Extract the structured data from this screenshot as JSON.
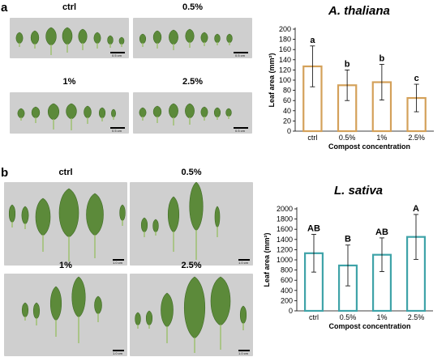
{
  "panels": {
    "a": {
      "letter": "a",
      "photos": [
        {
          "label": "ctrl",
          "scale": "0.5 cm"
        },
        {
          "label": "0.5%",
          "scale": "0.5 cm"
        },
        {
          "label": "1%",
          "scale": "0.5 cm"
        },
        {
          "label": "2.5%",
          "scale": "0.5 cm"
        }
      ]
    },
    "b": {
      "letter": "b",
      "photos": [
        {
          "label": "ctrl",
          "scale": "1.0 cm"
        },
        {
          "label": "0.5%",
          "scale": "1.0 cm"
        },
        {
          "label": "1%",
          "scale": "1.0 cm"
        },
        {
          "label": "2.5%",
          "scale": "1.0 cm"
        }
      ]
    }
  },
  "colors": {
    "chart_a": "#d4a15a",
    "chart_b": "#3fa3a8",
    "photo_bg": "#d0d0d0",
    "leaf": "#5c8a3a"
  },
  "chart_data": [
    {
      "type": "bar",
      "title": "A. thaliana",
      "categories": [
        "ctrl",
        "0.5%",
        "1%",
        "2.5%"
      ],
      "values": [
        127,
        90,
        96,
        65
      ],
      "errors": [
        40,
        30,
        35,
        27
      ],
      "letters": [
        "a",
        "b",
        "b",
        "c"
      ],
      "xlabel": "Compost concentration",
      "ylabel": "Leaf area (mm²)",
      "ylim": [
        0,
        200
      ],
      "yticks": [
        0,
        20,
        40,
        60,
        80,
        100,
        120,
        140,
        160,
        180,
        200
      ]
    },
    {
      "type": "bar",
      "title": "L. sativa",
      "categories": [
        "ctrl",
        "0.5%",
        "1%",
        "2.5%"
      ],
      "values": [
        1130,
        890,
        1100,
        1450
      ],
      "errors": [
        370,
        400,
        330,
        440
      ],
      "letters": [
        "AB",
        "B",
        "AB",
        "A"
      ],
      "xlabel": "Compost concentration",
      "ylabel": "Leaf area (mm²)",
      "ylim": [
        0,
        2000
      ],
      "yticks": [
        0,
        200,
        400,
        600,
        800,
        1000,
        1200,
        1400,
        1600,
        1800,
        2000
      ]
    }
  ]
}
